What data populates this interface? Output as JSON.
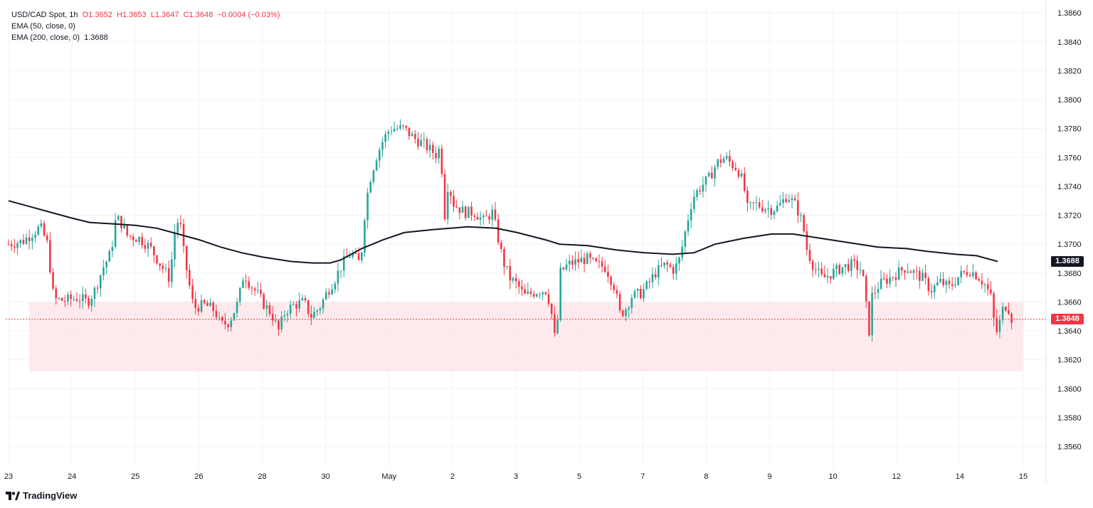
{
  "legend": {
    "symbol": "USD/CAD Spot, 1h",
    "open": "O1.3652",
    "high": "H1.3653",
    "low": "L1.3647",
    "close": "C1.3648",
    "change": "−0.0004 (−0.03%)",
    "ema50": "EMA (50, close, 0)",
    "ema200": "EMA (200, close, 0)",
    "ema200_value": "1.3688"
  },
  "brand": "TradingView",
  "colors": {
    "up": "#26a69a",
    "down": "#f23645",
    "ema": "#131722",
    "zone": "#fde3e5",
    "grid": "#f0f3fa"
  },
  "chart_data": {
    "type": "candlestick",
    "title": "USD/CAD Spot, 1h",
    "ylim": [
      1.3545,
      1.3865
    ],
    "y_ticks": [
      1.356,
      1.358,
      1.36,
      1.362,
      1.364,
      1.366,
      1.368,
      1.37,
      1.372,
      1.374,
      1.376,
      1.378,
      1.38,
      1.382,
      1.384,
      1.386
    ],
    "y_tick_labels": [
      "1.3560",
      "1.3580",
      "1.3600",
      "1.3620",
      "1.3640",
      "1.3660",
      "1.3680",
      "1.3700",
      "1.3720",
      "1.3740",
      "1.3760",
      "1.3780",
      "1.3800",
      "1.3820",
      "1.3840",
      "1.3860"
    ],
    "x_tick_labels": [
      "23",
      "24",
      "25",
      "26",
      "28",
      "30",
      "May",
      "2",
      "3",
      "5",
      "7",
      "8",
      "9",
      "10",
      "12",
      "14",
      "15"
    ],
    "support_zone": [
      1.3612,
      1.366
    ],
    "last_price": {
      "value": 1.3648,
      "label": "1.3648"
    },
    "ema200_label": {
      "value": 1.3688,
      "label": "1.3688"
    },
    "ema200": [
      [
        0,
        1.373
      ],
      [
        30,
        1.3726
      ],
      [
        60,
        1.3722
      ],
      [
        90,
        1.3718
      ],
      [
        115,
        1.3715
      ],
      [
        150,
        1.3714
      ],
      [
        180,
        1.3713
      ],
      [
        210,
        1.3711
      ],
      [
        240,
        1.3707
      ],
      [
        270,
        1.3703
      ],
      [
        300,
        1.3698
      ],
      [
        330,
        1.3694
      ],
      [
        360,
        1.3691
      ],
      [
        400,
        1.3688
      ],
      [
        430,
        1.3687
      ],
      [
        455,
        1.3687
      ],
      [
        470,
        1.3689
      ],
      [
        500,
        1.3697
      ],
      [
        530,
        1.3703
      ],
      [
        560,
        1.3708
      ],
      [
        600,
        1.371
      ],
      [
        650,
        1.3712
      ],
      [
        690,
        1.3711
      ],
      [
        720,
        1.3708
      ],
      [
        760,
        1.3703
      ],
      [
        780,
        1.37
      ],
      [
        820,
        1.3699
      ],
      [
        860,
        1.3696
      ],
      [
        900,
        1.3694
      ],
      [
        940,
        1.3693
      ],
      [
        970,
        1.3694
      ],
      [
        1000,
        1.37
      ],
      [
        1040,
        1.3704
      ],
      [
        1080,
        1.3707
      ],
      [
        1110,
        1.3707
      ],
      [
        1150,
        1.3704
      ],
      [
        1190,
        1.3701
      ],
      [
        1230,
        1.3698
      ],
      [
        1270,
        1.3697
      ],
      [
        1300,
        1.3695
      ],
      [
        1340,
        1.3693
      ],
      [
        1370,
        1.3692
      ],
      [
        1400,
        1.3688
      ]
    ],
    "path": [
      [
        0,
        1.37
      ],
      [
        20,
        1.3702
      ],
      [
        45,
        1.3712
      ],
      [
        55,
        1.37
      ],
      [
        64,
        1.3662
      ],
      [
        78,
        1.3661
      ],
      [
        98,
        1.3663
      ],
      [
        112,
        1.366
      ],
      [
        122,
        1.3668
      ],
      [
        134,
        1.3684
      ],
      [
        145,
        1.3694
      ],
      [
        152,
        1.3718
      ],
      [
        158,
        1.3716
      ],
      [
        168,
        1.3706
      ],
      [
        185,
        1.3704
      ],
      [
        200,
        1.3698
      ],
      [
        215,
        1.3686
      ],
      [
        228,
        1.3676
      ],
      [
        236,
        1.3712
      ],
      [
        242,
        1.3718
      ],
      [
        248,
        1.3694
      ],
      [
        255,
        1.3674
      ],
      [
        262,
        1.3656
      ],
      [
        278,
        1.3658
      ],
      [
        292,
        1.3654
      ],
      [
        300,
        1.3644
      ],
      [
        312,
        1.3646
      ],
      [
        325,
        1.366
      ],
      [
        333,
        1.368
      ],
      [
        342,
        1.3672
      ],
      [
        352,
        1.3666
      ],
      [
        362,
        1.3658
      ],
      [
        372,
        1.3652
      ],
      [
        382,
        1.364
      ],
      [
        392,
        1.3654
      ],
      [
        405,
        1.3658
      ],
      [
        418,
        1.366
      ],
      [
        428,
        1.365
      ],
      [
        440,
        1.3656
      ],
      [
        452,
        1.3668
      ],
      [
        462,
        1.3676
      ],
      [
        472,
        1.3686
      ],
      [
        485,
        1.3694
      ],
      [
        498,
        1.3686
      ],
      [
        504,
        1.372
      ],
      [
        510,
        1.3742
      ],
      [
        520,
        1.376
      ],
      [
        530,
        1.3772
      ],
      [
        540,
        1.378
      ],
      [
        560,
        1.378
      ],
      [
        572,
        1.3774
      ],
      [
        585,
        1.377
      ],
      [
        595,
        1.3766
      ],
      [
        605,
        1.3762
      ],
      [
        612,
        1.3768
      ],
      [
        616,
        1.3714
      ],
      [
        622,
        1.3742
      ],
      [
        630,
        1.3728
      ],
      [
        645,
        1.3722
      ],
      [
        660,
        1.3722
      ],
      [
        672,
        1.3716
      ],
      [
        685,
        1.3722
      ],
      [
        692,
        1.3706
      ],
      [
        700,
        1.3688
      ],
      [
        710,
        1.3676
      ],
      [
        720,
        1.3672
      ],
      [
        730,
        1.3664
      ],
      [
        740,
        1.3666
      ],
      [
        752,
        1.3668
      ],
      [
        762,
        1.3668
      ],
      [
        770,
        1.3648
      ],
      [
        775,
        1.3626
      ],
      [
        780,
        1.368
      ],
      [
        792,
        1.3686
      ],
      [
        805,
        1.3688
      ],
      [
        818,
        1.369
      ],
      [
        830,
        1.3686
      ],
      [
        845,
        1.3684
      ],
      [
        858,
        1.367
      ],
      [
        865,
        1.3652
      ],
      [
        872,
        1.3654
      ],
      [
        882,
        1.3664
      ],
      [
        895,
        1.3666
      ],
      [
        905,
        1.3672
      ],
      [
        915,
        1.368
      ],
      [
        930,
        1.3686
      ],
      [
        942,
        1.3682
      ],
      [
        950,
        1.369
      ],
      [
        955,
        1.3702
      ],
      [
        960,
        1.3714
      ],
      [
        968,
        1.3732
      ],
      [
        980,
        1.374
      ],
      [
        992,
        1.3746
      ],
      [
        1002,
        1.3756
      ],
      [
        1014,
        1.376
      ],
      [
        1022,
        1.3756
      ],
      [
        1032,
        1.3752
      ],
      [
        1040,
        1.3742
      ],
      [
        1046,
        1.3724
      ],
      [
        1056,
        1.3728
      ],
      [
        1066,
        1.3726
      ],
      [
        1080,
        1.3724
      ],
      [
        1090,
        1.3726
      ],
      [
        1102,
        1.3734
      ],
      [
        1115,
        1.3726
      ],
      [
        1124,
        1.3714
      ],
      [
        1130,
        1.3696
      ],
      [
        1140,
        1.3684
      ],
      [
        1152,
        1.3676
      ],
      [
        1165,
        1.368
      ],
      [
        1180,
        1.3684
      ],
      [
        1195,
        1.3686
      ],
      [
        1208,
        1.3682
      ],
      [
        1214,
        1.3656
      ],
      [
        1218,
        1.364
      ],
      [
        1222,
        1.3664
      ],
      [
        1232,
        1.3672
      ],
      [
        1245,
        1.3676
      ],
      [
        1258,
        1.368
      ],
      [
        1270,
        1.3684
      ],
      [
        1282,
        1.368
      ],
      [
        1295,
        1.3676
      ],
      [
        1305,
        1.3668
      ],
      [
        1318,
        1.3674
      ],
      [
        1332,
        1.367
      ],
      [
        1345,
        1.3678
      ],
      [
        1360,
        1.3682
      ],
      [
        1372,
        1.3678
      ],
      [
        1382,
        1.3672
      ],
      [
        1390,
        1.3664
      ],
      [
        1396,
        1.3642
      ],
      [
        1400,
        1.3638
      ],
      [
        1405,
        1.3652
      ],
      [
        1410,
        1.3658
      ],
      [
        1415,
        1.3656
      ],
      [
        1420,
        1.3648
      ]
    ]
  }
}
